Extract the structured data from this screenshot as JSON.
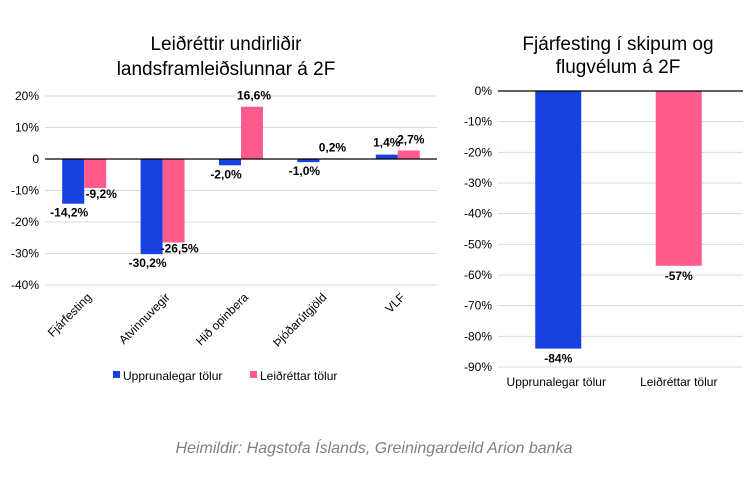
{
  "colors": {
    "original": "#1741e0",
    "revised": "#ff5c8d",
    "grid": "#d9d9d9"
  },
  "chart_data": [
    {
      "type": "bar",
      "title_lines": [
        "Leiðréttir undirliðir",
        "landsframleiðslunnar  á 2F"
      ],
      "categories": [
        "Fjárfesting",
        "Atvinnuvegir",
        "Hið opinbera",
        "Þjóðarútgjöld",
        "VLF"
      ],
      "series": [
        {
          "name": "Upprunalegar tölur",
          "values": [
            -14.2,
            -30.2,
            -2.0,
            -1.0,
            1.4
          ],
          "labels": [
            "-14,2%",
            "-30,2%",
            "-2,0%",
            "-1,0%",
            "1,4%"
          ]
        },
        {
          "name": "Leiðréttar tölur",
          "values": [
            -9.2,
            -26.5,
            16.6,
            0.2,
            2.7
          ],
          "labels": [
            "-9,2%",
            "-26,5%",
            "16,6%",
            "0,2%",
            "2,7%"
          ]
        }
      ],
      "ylim": [
        -40,
        20
      ],
      "yticks": [
        20,
        10,
        0,
        -10,
        -20,
        -30,
        -40
      ],
      "ytick_labels": [
        "20%",
        "10%",
        "0",
        "-10%",
        "-20%",
        "-30%",
        "-40%"
      ],
      "grid": true,
      "legend": "bottom"
    },
    {
      "type": "bar",
      "title_lines": [
        "Fjárfesting í skipum og",
        "flugvélum á 2F"
      ],
      "categories": [
        "Upprunalegar tölur",
        "Leiðréttar tölur"
      ],
      "values": [
        -84,
        -57
      ],
      "labels": [
        "-84%",
        "-57%"
      ],
      "ylim": [
        -90,
        0
      ],
      "yticks": [
        0,
        -10,
        -20,
        -30,
        -40,
        -50,
        -60,
        -70,
        -80,
        -90
      ],
      "ytick_labels": [
        "0%",
        "-10%",
        "-20%",
        "-30%",
        "-40%",
        "-50%",
        "-60%",
        "-70%",
        "-80%",
        "-90%"
      ],
      "grid": true
    }
  ],
  "source": "Heimildir: Hagstofa Íslands, Greiningardeild Arion banka"
}
